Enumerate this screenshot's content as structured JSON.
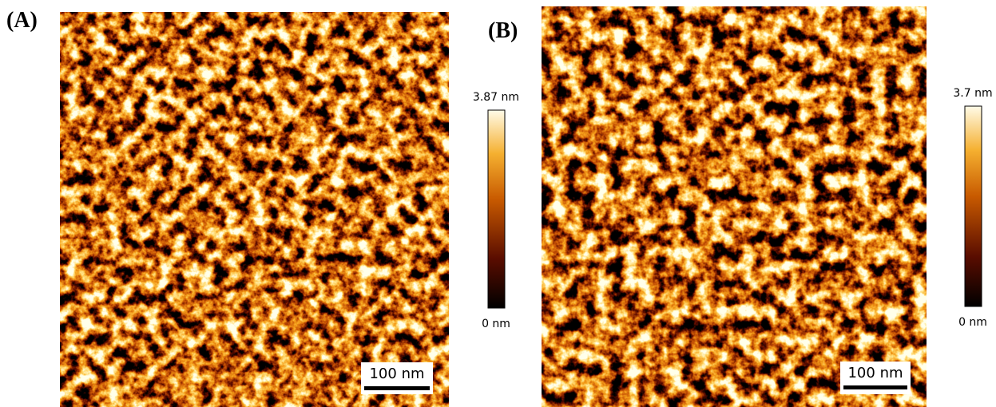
{
  "panels": [
    {
      "label": "(A)",
      "colorbar_max": "3.87 nm",
      "colorbar_min": "0 nm",
      "scale_bar": "100 nm"
    },
    {
      "label": "(B)",
      "colorbar_max": "3.7 nm",
      "colorbar_min": "0 nm",
      "scale_bar": "100 nm"
    }
  ]
}
